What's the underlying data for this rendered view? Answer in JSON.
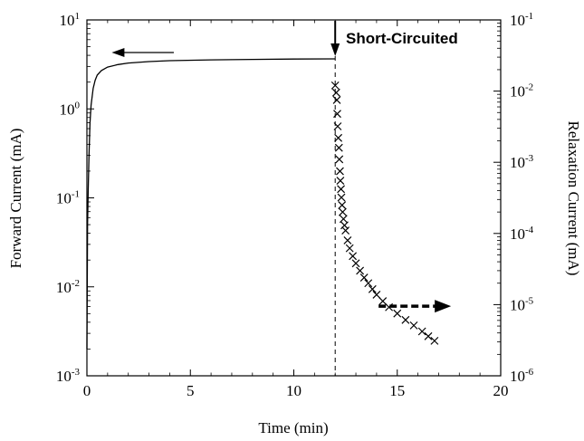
{
  "chart_data": {
    "type": "line",
    "title": "",
    "xlabel": "Time (min)",
    "ylabel_left": "Forward Current (mA)",
    "ylabel_right": "Relaxation Current (mA)",
    "xlim": [
      0,
      20
    ],
    "ylim_left": [
      0.001,
      10
    ],
    "ylim_right": [
      1e-06,
      0.1
    ],
    "y_scale": "log",
    "grid": false,
    "x_ticks": [
      {
        "value": 0,
        "label": "0"
      },
      {
        "value": 5,
        "label": "5"
      },
      {
        "value": 10,
        "label": "10"
      },
      {
        "value": 15,
        "label": "15"
      },
      {
        "value": 20,
        "label": "20"
      }
    ],
    "y_ticks_left": [
      {
        "value": 0.001,
        "base": "10",
        "exp": "-3"
      },
      {
        "value": 0.01,
        "base": "10",
        "exp": "-2"
      },
      {
        "value": 0.1,
        "base": "10",
        "exp": "-1"
      },
      {
        "value": 1,
        "base": "10",
        "exp": "0"
      },
      {
        "value": 10,
        "base": "10",
        "exp": "1"
      }
    ],
    "y_ticks_right": [
      {
        "value": 1e-06,
        "base": "10",
        "exp": "-6"
      },
      {
        "value": 1e-05,
        "base": "10",
        "exp": "-5"
      },
      {
        "value": 0.0001,
        "base": "10",
        "exp": "-4"
      },
      {
        "value": 0.001,
        "base": "10",
        "exp": "-3"
      },
      {
        "value": 0.01,
        "base": "10",
        "exp": "-2"
      },
      {
        "value": 0.1,
        "base": "10",
        "exp": "-1"
      }
    ],
    "series": [
      {
        "axis": "left",
        "style": "solid-line",
        "x": [
          0.0,
          0.03,
          0.06,
          0.1,
          0.15,
          0.2,
          0.3,
          0.4,
          0.5,
          0.7,
          1.0,
          1.5,
          2.0,
          3.0,
          4.0,
          6.0,
          8.0,
          10.0,
          12.0
        ],
        "y": [
          0.002,
          0.05,
          0.12,
          0.3,
          0.7,
          1.1,
          1.7,
          2.1,
          2.4,
          2.7,
          2.95,
          3.15,
          3.28,
          3.4,
          3.48,
          3.56,
          3.6,
          3.63,
          3.65
        ]
      },
      {
        "axis": "right",
        "style": "x-markers",
        "x": [
          12.0,
          12.05,
          12.08,
          12.1,
          12.12,
          12.15,
          12.18,
          12.2,
          12.23,
          12.25,
          12.28,
          12.3,
          12.33,
          12.36,
          12.4,
          12.45,
          12.5,
          12.6,
          12.7,
          12.85,
          13.0,
          13.2,
          13.4,
          13.6,
          13.8,
          14.0,
          14.3,
          14.6,
          15.0,
          15.4,
          15.8,
          16.2,
          16.5,
          16.8
        ],
        "y": [
          0.012,
          0.0095,
          0.0075,
          0.0048,
          0.0032,
          0.0022,
          0.0016,
          0.0011,
          0.00075,
          0.00055,
          0.00042,
          0.00032,
          0.00025,
          0.0002,
          0.00016,
          0.00013,
          0.00011,
          8e-05,
          6.2e-05,
          4.8e-05,
          3.8e-05,
          3e-05,
          2.4e-05,
          2e-05,
          1.65e-05,
          1.38e-05,
          1.12e-05,
          9.2e-06,
          7.5e-06,
          6.1e-06,
          5.1e-06,
          4.2e-06,
          3.6e-06,
          3.1e-06
        ]
      }
    ],
    "annotations": [
      {
        "text": "Short-Circuited",
        "x": 12,
        "kind": "arrow-down-label"
      }
    ],
    "markers": [
      {
        "kind": "vertical-dashed-line",
        "x": 12
      },
      {
        "kind": "arrow-left",
        "axis": "left",
        "x_from": 4.2,
        "x_to": 1.2,
        "y": 4.3
      },
      {
        "kind": "dashed-arrow-right",
        "axis": "right",
        "x_from": 14.1,
        "x_to": 17.6,
        "y": 9.5e-06
      }
    ]
  }
}
